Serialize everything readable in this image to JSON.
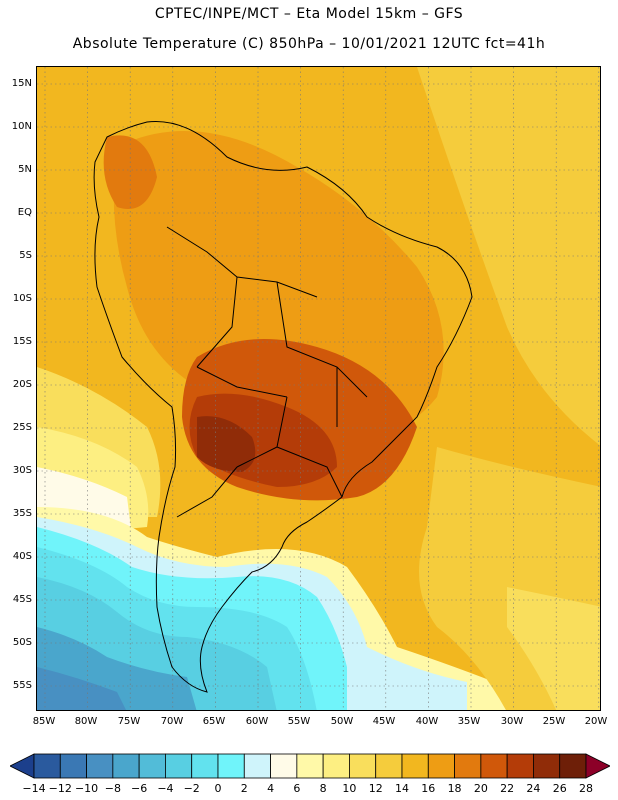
{
  "header": {
    "line1": "CPTEC/INPE/MCT –  Eta Model 15km – GFS",
    "line2": "Absolute Temperature (C) 850hPa – 10/01/2021 12UTC fct=41h"
  },
  "map": {
    "lat_labels": [
      "15N",
      "10N",
      "5N",
      "EQ",
      "5S",
      "10S",
      "15S",
      "20S",
      "25S",
      "30S",
      "35S",
      "40S",
      "45S",
      "50S",
      "55S"
    ],
    "lon_labels": [
      "85W",
      "80W",
      "75W",
      "70W",
      "65W",
      "60W",
      "55W",
      "50W",
      "45W",
      "40W",
      "35W",
      "30W",
      "25W",
      "20W"
    ],
    "field": "temperature-850hPa"
  },
  "colorbar": {
    "labels": [
      "-14",
      "-12",
      "-10",
      "-8",
      "-6",
      "-4",
      "-2",
      "0",
      "2",
      "4",
      "6",
      "8",
      "10",
      "12",
      "14",
      "16",
      "18",
      "20",
      "22",
      "24",
      "26",
      "28"
    ],
    "colors": [
      "#1c3f8c",
      "#2a5a9e",
      "#3a78b4",
      "#4890c2",
      "#4aa6cc",
      "#52bcd8",
      "#58cfe2",
      "#62e2ee",
      "#70f4fa",
      "#cff4fb",
      "#fffbe8",
      "#fff9a8",
      "#fdef82",
      "#f9de5c",
      "#f5cc3c",
      "#f2b71f",
      "#ee9d14",
      "#e27a0e",
      "#d0580a",
      "#b43c08",
      "#902c08",
      "#6e1f08",
      "#8c0028"
    ],
    "unit": "C"
  }
}
